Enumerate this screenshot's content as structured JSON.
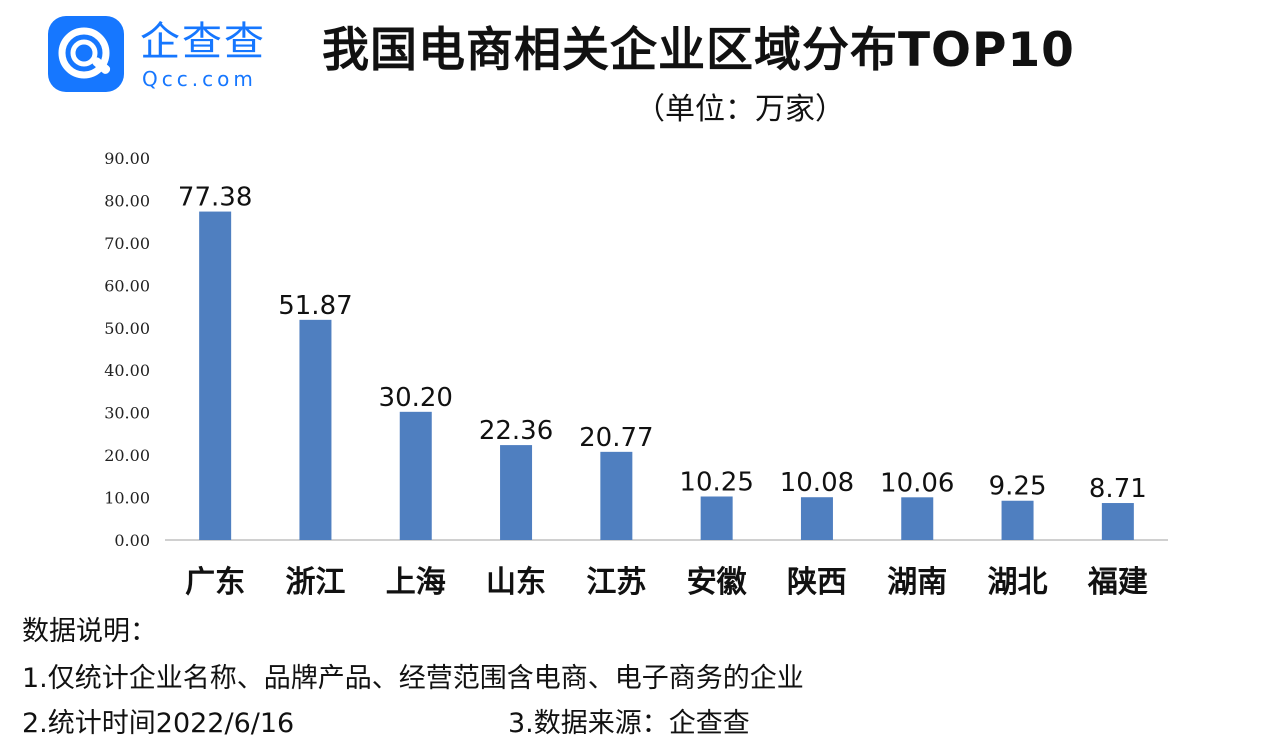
{
  "logo": {
    "icon": "qcc-logo-icon",
    "name_cn": "企查查",
    "name_en": "Qcc.com",
    "color": "#1677ff"
  },
  "title": "我国电商相关企业区域分布TOP10",
  "subtitle": "（单位：万家）",
  "chart_data": {
    "type": "bar",
    "categories": [
      "广东",
      "浙江",
      "上海",
      "山东",
      "江苏",
      "安徽",
      "陕西",
      "湖南",
      "湖北",
      "福建"
    ],
    "values": [
      77.38,
      51.87,
      30.2,
      22.36,
      20.77,
      10.25,
      10.08,
      10.06,
      9.25,
      8.71
    ],
    "value_labels": [
      "77.38",
      "51.87",
      "30.20",
      "22.36",
      "20.77",
      "10.25",
      "10.08",
      "10.06",
      "9.25",
      "8.71"
    ],
    "y_ticks": [
      "0.00",
      "10.00",
      "20.00",
      "30.00",
      "40.00",
      "50.00",
      "60.00",
      "70.00",
      "80.00",
      "90.00"
    ],
    "ylim": [
      0,
      90
    ],
    "bar_color": "#4f7fc0",
    "grid": false,
    "xlabel": "",
    "ylabel": ""
  },
  "notes": {
    "heading": "数据说明：",
    "line1": "1.仅统计企业名称、品牌产品、经营范围含电商、电子商务的企业",
    "line2": "2.统计时间2022/6/16",
    "line3": "3.数据来源：企查查"
  }
}
